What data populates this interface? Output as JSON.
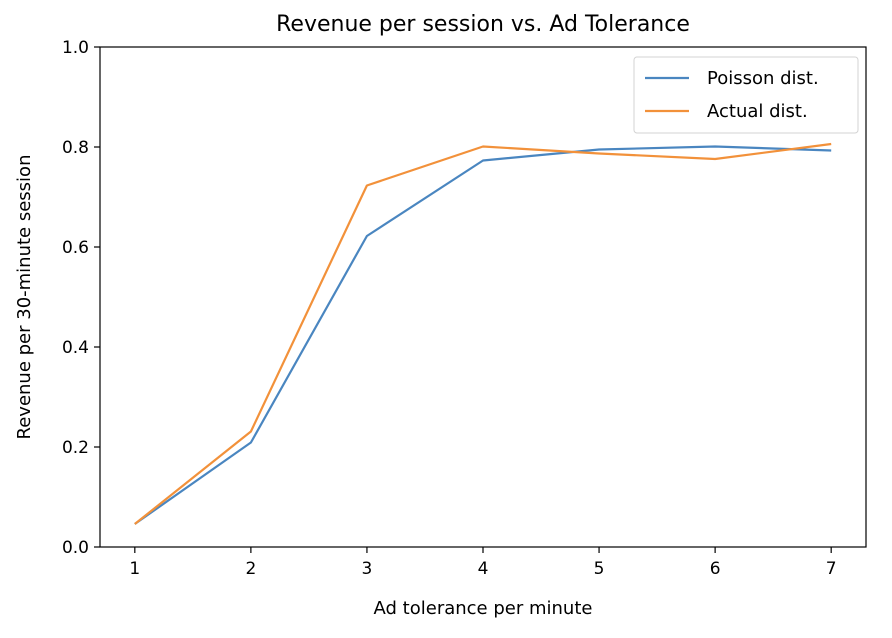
{
  "chart_data": {
    "type": "line",
    "title": "Revenue per session vs. Ad Tolerance",
    "xlabel": "Ad tolerance per minute",
    "ylabel": "Revenue per 30-minute session",
    "x": [
      1,
      2,
      3,
      4,
      5,
      6,
      7
    ],
    "xticks": [
      "1",
      "2",
      "3",
      "4",
      "5",
      "6",
      "7"
    ],
    "yticks": [
      "0.0",
      "0.2",
      "0.4",
      "0.6",
      "0.8",
      "1.0"
    ],
    "xlim": [
      0.7,
      7.3
    ],
    "ylim": [
      0.0,
      1.0
    ],
    "grid": false,
    "legend_position": "top-right",
    "series": [
      {
        "name": "Poisson dist.",
        "color": "#4a86c0",
        "values": [
          0.046,
          0.209,
          0.622,
          0.773,
          0.795,
          0.801,
          0.793
        ]
      },
      {
        "name": "Actual dist.",
        "color": "#f2913a",
        "values": [
          0.046,
          0.231,
          0.723,
          0.801,
          0.787,
          0.776,
          0.806
        ]
      }
    ]
  }
}
